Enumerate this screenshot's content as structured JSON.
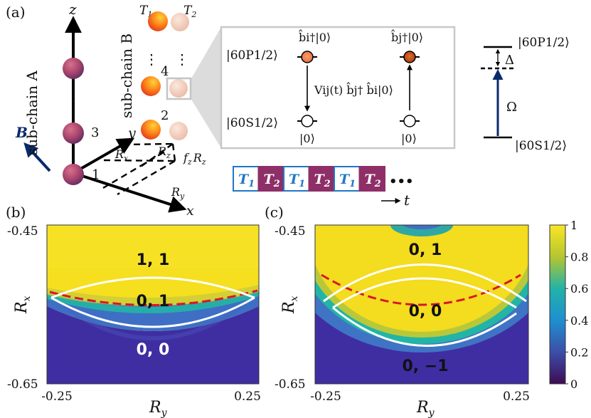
{
  "panel_a": {
    "label": "(a)",
    "axes": {
      "z": "z",
      "y": "y",
      "x": "x"
    },
    "field_label": "B",
    "subchain_a": "sub-chain A",
    "subchain_b": "sub-chain B",
    "site_numbers": [
      "1",
      "2",
      "3",
      "4"
    ],
    "vdots": "⋮",
    "types": [
      "T",
      "T"
    ],
    "type_subs": [
      "1",
      "2"
    ],
    "distances": {
      "rx": "R",
      "rx_sub": "x",
      "ry": "R",
      "ry_sub": "y",
      "rz": "R",
      "rz_sub": "z",
      "frz_f": "f",
      "frz_f_sub": "z",
      "frz_r": "R",
      "frz_r_sub": "z"
    },
    "inset": {
      "upper_state": "|60P1/2⟩",
      "lower_state": "|60S1/2⟩",
      "bi_label": "b̂i†|0⟩",
      "bj_label": "b̂j†|0⟩",
      "vac_left": "|0⟩",
      "vac_right": "|0⟩",
      "coupling": "Vij(t) b̂j† b̂i|0⟩"
    },
    "levels": {
      "upper": "|60P1/2⟩",
      "lower": "|60S1/2⟩",
      "detuning": "Δ",
      "rabi": "Ω"
    },
    "sequence": [
      "T1",
      "T2",
      "T1",
      "T2",
      "T1",
      "T2"
    ],
    "sequence_ellipsis": "•••",
    "time_label": "t",
    "colors": {
      "T1_border": "#1f77c8",
      "T1_text": "#1f77c8",
      "T2_fill": "#8e2f68",
      "coupling_arrow": "#0a2a6b"
    }
  },
  "panel_b": {
    "label": "(b)",
    "ylabel": "R",
    "ylabel_sub": "x",
    "xlabel": "R",
    "xlabel_sub": "y",
    "yticks": [
      "-0.45",
      "-0.65"
    ],
    "xticks": [
      "-0.25",
      "0.25"
    ],
    "regions": [
      "1, 1",
      "0, 1",
      "0, 0"
    ]
  },
  "panel_c": {
    "label": "(c)",
    "ylabel": "R",
    "ylabel_sub": "x",
    "xlabel": "R",
    "xlabel_sub": "y",
    "yticks": [
      "-0.45",
      "-0.65"
    ],
    "xticks": [
      "-0.25",
      "0.25"
    ],
    "regions": [
      "0, 1",
      "0, 0",
      "0, −1"
    ]
  },
  "colorbar": {
    "ticks": [
      "1",
      "0.8",
      "0.6",
      "0.4",
      "0.2",
      "0"
    ],
    "colormap": [
      "#440154",
      "#3b528b",
      "#21918c",
      "#5ec962",
      "#fde725"
    ]
  },
  "chart_data": [
    {
      "type": "heatmap",
      "title": "",
      "xlabel": "R_y",
      "ylabel": "R_x",
      "xlim": [
        -0.25,
        0.25
      ],
      "ylim": [
        -0.65,
        -0.45
      ],
      "color_range": [
        0,
        1
      ],
      "annotations": [
        "1, 1",
        "0, 1",
        "0, 0"
      ]
    },
    {
      "type": "heatmap",
      "title": "",
      "xlabel": "R_y",
      "ylabel": "R_x",
      "xlim": [
        -0.25,
        0.25
      ],
      "ylim": [
        -0.65,
        -0.45
      ],
      "color_range": [
        0,
        1
      ],
      "annotations": [
        "0, 1",
        "0, 0",
        "0, −1"
      ]
    }
  ]
}
